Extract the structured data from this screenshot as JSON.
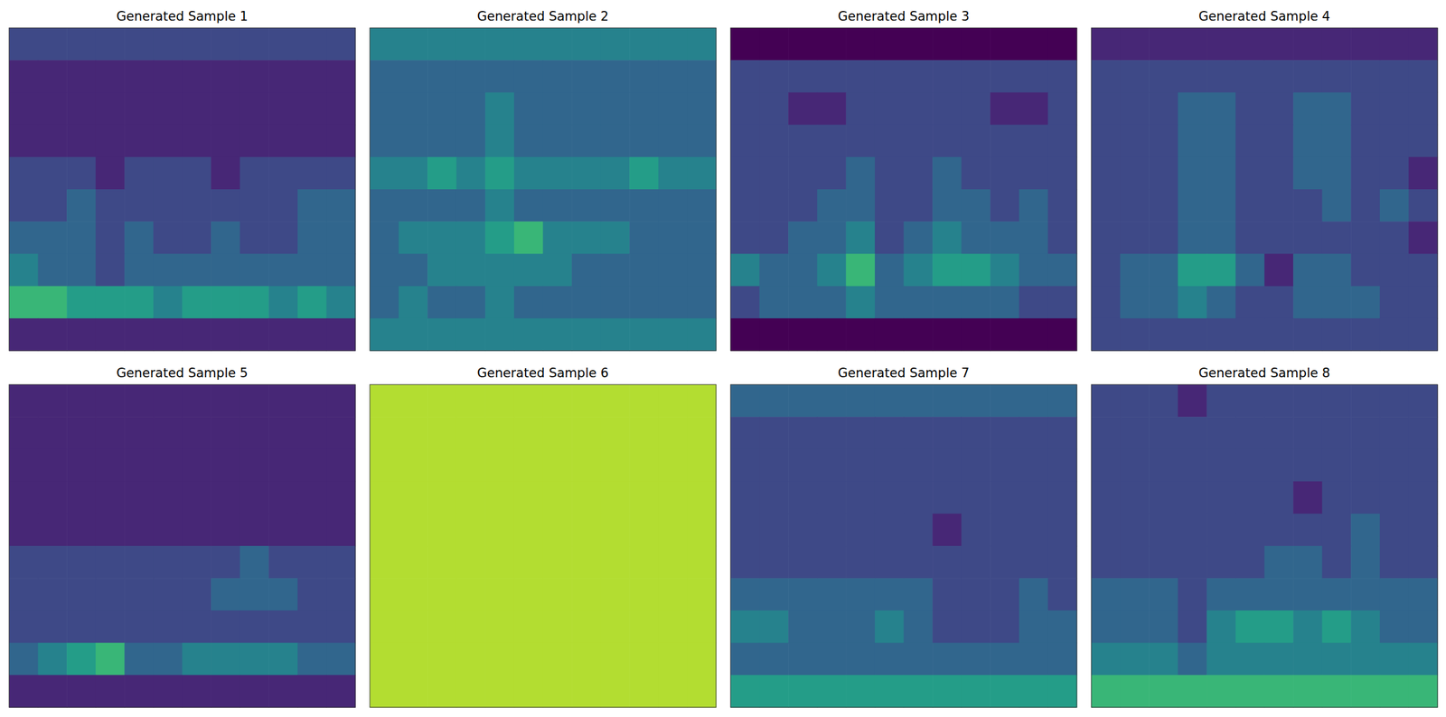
{
  "chart_data": [
    {
      "type": "heatmap",
      "title": "Generated Sample 1",
      "tick_labels": false,
      "zlim": [
        0,
        9
      ],
      "cells": [
        [
          2,
          2,
          2,
          2,
          2,
          2,
          2,
          2,
          2,
          2,
          2,
          2
        ],
        [
          1,
          1,
          1,
          1,
          1,
          1,
          1,
          1,
          1,
          1,
          1,
          1
        ],
        [
          1,
          1,
          1,
          1,
          1,
          1,
          1,
          1,
          1,
          1,
          1,
          1
        ],
        [
          1,
          1,
          1,
          1,
          1,
          1,
          1,
          1,
          1,
          1,
          1,
          1
        ],
        [
          2,
          2,
          2,
          1,
          2,
          2,
          2,
          1,
          2,
          2,
          2,
          2
        ],
        [
          2,
          2,
          3,
          2,
          2,
          2,
          2,
          2,
          2,
          2,
          3,
          3
        ],
        [
          3,
          3,
          3,
          2,
          3,
          2,
          2,
          3,
          2,
          2,
          3,
          3
        ],
        [
          4,
          3,
          3,
          2,
          3,
          3,
          3,
          3,
          3,
          3,
          3,
          3
        ],
        [
          6,
          6,
          5,
          5,
          5,
          4,
          5,
          5,
          5,
          4,
          5,
          4
        ],
        [
          1,
          1,
          1,
          1,
          1,
          1,
          1,
          1,
          1,
          1,
          1,
          1
        ]
      ]
    },
    {
      "type": "heatmap",
      "title": "Generated Sample 2",
      "tick_labels": false,
      "zlim": [
        0,
        9
      ],
      "cells": [
        [
          4,
          4,
          4,
          4,
          4,
          4,
          4,
          4,
          4,
          4,
          4,
          4
        ],
        [
          3,
          3,
          3,
          3,
          3,
          3,
          3,
          3,
          3,
          3,
          3,
          3
        ],
        [
          3,
          3,
          3,
          3,
          4,
          3,
          3,
          3,
          3,
          3,
          3,
          3
        ],
        [
          3,
          3,
          3,
          3,
          4,
          3,
          3,
          3,
          3,
          3,
          3,
          3
        ],
        [
          4,
          4,
          5,
          4,
          5,
          4,
          4,
          4,
          4,
          5,
          4,
          4
        ],
        [
          3,
          3,
          3,
          3,
          4,
          3,
          3,
          3,
          3,
          3,
          3,
          3
        ],
        [
          3,
          4,
          4,
          4,
          5,
          6,
          4,
          4,
          4,
          3,
          3,
          3
        ],
        [
          3,
          3,
          4,
          4,
          4,
          4,
          4,
          3,
          3,
          3,
          3,
          3
        ],
        [
          3,
          4,
          3,
          3,
          4,
          3,
          3,
          3,
          3,
          3,
          3,
          3
        ],
        [
          4,
          4,
          4,
          4,
          4,
          4,
          4,
          4,
          4,
          4,
          4,
          4
        ]
      ]
    },
    {
      "type": "heatmap",
      "title": "Generated Sample 3",
      "tick_labels": false,
      "zlim": [
        0,
        9
      ],
      "cells": [
        [
          0,
          0,
          0,
          0,
          0,
          0,
          0,
          0,
          0,
          0,
          0,
          0
        ],
        [
          2,
          2,
          2,
          2,
          2,
          2,
          2,
          2,
          2,
          2,
          2,
          2
        ],
        [
          2,
          2,
          1,
          1,
          2,
          2,
          2,
          2,
          2,
          1,
          1,
          2
        ],
        [
          2,
          2,
          2,
          2,
          2,
          2,
          2,
          2,
          2,
          2,
          2,
          2
        ],
        [
          2,
          2,
          2,
          2,
          3,
          2,
          2,
          3,
          2,
          2,
          2,
          2
        ],
        [
          2,
          2,
          2,
          3,
          3,
          2,
          2,
          3,
          3,
          2,
          3,
          2
        ],
        [
          2,
          2,
          3,
          3,
          4,
          2,
          3,
          4,
          3,
          3,
          3,
          2
        ],
        [
          4,
          3,
          3,
          4,
          6,
          3,
          4,
          5,
          5,
          4,
          3,
          3
        ],
        [
          2,
          3,
          3,
          3,
          4,
          3,
          3,
          3,
          3,
          3,
          2,
          2
        ],
        [
          0,
          0,
          0,
          0,
          0,
          0,
          0,
          0,
          0,
          0,
          0,
          0
        ]
      ]
    },
    {
      "type": "heatmap",
      "title": "Generated Sample 4",
      "tick_labels": false,
      "zlim": [
        0,
        9
      ],
      "cells": [
        [
          1,
          1,
          1,
          1,
          1,
          1,
          1,
          1,
          1,
          1,
          1,
          1
        ],
        [
          2,
          2,
          2,
          2,
          2,
          2,
          2,
          2,
          2,
          2,
          2,
          2
        ],
        [
          2,
          2,
          2,
          3,
          3,
          2,
          2,
          3,
          3,
          2,
          2,
          2
        ],
        [
          2,
          2,
          2,
          3,
          3,
          2,
          2,
          3,
          3,
          2,
          2,
          2
        ],
        [
          2,
          2,
          2,
          3,
          3,
          2,
          2,
          3,
          3,
          2,
          2,
          1
        ],
        [
          2,
          2,
          2,
          3,
          3,
          2,
          2,
          2,
          3,
          2,
          3,
          2
        ],
        [
          2,
          2,
          2,
          3,
          3,
          2,
          2,
          2,
          2,
          2,
          2,
          1
        ],
        [
          2,
          3,
          3,
          5,
          5,
          3,
          1,
          3,
          3,
          2,
          2,
          2
        ],
        [
          2,
          3,
          3,
          4,
          3,
          2,
          2,
          3,
          3,
          3,
          2,
          2
        ],
        [
          2,
          2,
          2,
          2,
          2,
          2,
          2,
          2,
          2,
          2,
          2,
          2
        ]
      ]
    },
    {
      "type": "heatmap",
      "title": "Generated Sample 5",
      "tick_labels": false,
      "zlim": [
        0,
        9
      ],
      "cells": [
        [
          1,
          1,
          1,
          1,
          1,
          1,
          1,
          1,
          1,
          1,
          1,
          1
        ],
        [
          1,
          1,
          1,
          1,
          1,
          1,
          1,
          1,
          1,
          1,
          1,
          1
        ],
        [
          1,
          1,
          1,
          1,
          1,
          1,
          1,
          1,
          1,
          1,
          1,
          1
        ],
        [
          1,
          1,
          1,
          1,
          1,
          1,
          1,
          1,
          1,
          1,
          1,
          1
        ],
        [
          1,
          1,
          1,
          1,
          1,
          1,
          1,
          1,
          1,
          1,
          1,
          1
        ],
        [
          2,
          2,
          2,
          2,
          2,
          2,
          2,
          2,
          3,
          2,
          2,
          2
        ],
        [
          2,
          2,
          2,
          2,
          2,
          2,
          2,
          3,
          3,
          3,
          2,
          2
        ],
        [
          2,
          2,
          2,
          2,
          2,
          2,
          2,
          2,
          2,
          2,
          2,
          2
        ],
        [
          3,
          4,
          5,
          6,
          3,
          3,
          4,
          4,
          4,
          4,
          3,
          3
        ],
        [
          1,
          1,
          1,
          1,
          1,
          1,
          1,
          1,
          1,
          1,
          1,
          1
        ]
      ]
    },
    {
      "type": "heatmap",
      "title": "Generated Sample 6",
      "tick_labels": false,
      "zlim": [
        0,
        9
      ],
      "cells": [
        [
          8,
          8,
          8,
          8,
          8,
          8,
          8,
          8,
          8,
          8,
          8,
          8
        ],
        [
          8,
          8,
          8,
          8,
          8,
          8,
          8,
          8,
          8,
          8,
          8,
          8
        ],
        [
          8,
          8,
          8,
          8,
          8,
          8,
          8,
          8,
          8,
          8,
          8,
          8
        ],
        [
          8,
          8,
          8,
          8,
          8,
          8,
          8,
          8,
          8,
          8,
          8,
          8
        ],
        [
          8,
          8,
          8,
          8,
          8,
          8,
          8,
          8,
          8,
          8,
          8,
          8
        ],
        [
          8,
          8,
          8,
          8,
          8,
          8,
          8,
          8,
          8,
          8,
          8,
          8
        ],
        [
          8,
          8,
          8,
          8,
          8,
          8,
          8,
          8,
          8,
          8,
          8,
          8
        ],
        [
          8,
          8,
          8,
          8,
          8,
          8,
          8,
          8,
          8,
          8,
          8,
          8
        ],
        [
          8,
          8,
          8,
          8,
          8,
          8,
          8,
          8,
          8,
          8,
          8,
          8
        ],
        [
          8,
          8,
          8,
          8,
          8,
          8,
          8,
          8,
          8,
          8,
          8,
          8
        ]
      ]
    },
    {
      "type": "heatmap",
      "title": "Generated Sample 7",
      "tick_labels": false,
      "zlim": [
        0,
        9
      ],
      "cells": [
        [
          3,
          3,
          3,
          3,
          3,
          3,
          3,
          3,
          3,
          3,
          3,
          3
        ],
        [
          2,
          2,
          2,
          2,
          2,
          2,
          2,
          2,
          2,
          2,
          2,
          2
        ],
        [
          2,
          2,
          2,
          2,
          2,
          2,
          2,
          2,
          2,
          2,
          2,
          2
        ],
        [
          2,
          2,
          2,
          2,
          2,
          2,
          2,
          2,
          2,
          2,
          2,
          2
        ],
        [
          2,
          2,
          2,
          2,
          2,
          2,
          2,
          1,
          2,
          2,
          2,
          2
        ],
        [
          2,
          2,
          2,
          2,
          2,
          2,
          2,
          2,
          2,
          2,
          2,
          2
        ],
        [
          3,
          3,
          3,
          3,
          3,
          3,
          3,
          2,
          2,
          2,
          3,
          2
        ],
        [
          4,
          4,
          3,
          3,
          3,
          4,
          3,
          2,
          2,
          2,
          3,
          3
        ],
        [
          3,
          3,
          3,
          3,
          3,
          3,
          3,
          3,
          3,
          3,
          3,
          3
        ],
        [
          5,
          5,
          5,
          5,
          5,
          5,
          5,
          5,
          5,
          5,
          5,
          5
        ]
      ]
    },
    {
      "type": "heatmap",
      "title": "Generated Sample 8",
      "tick_labels": false,
      "zlim": [
        0,
        9
      ],
      "cells": [
        [
          2,
          2,
          2,
          1,
          2,
          2,
          2,
          2,
          2,
          2,
          2,
          2
        ],
        [
          2,
          2,
          2,
          2,
          2,
          2,
          2,
          2,
          2,
          2,
          2,
          2
        ],
        [
          2,
          2,
          2,
          2,
          2,
          2,
          2,
          2,
          2,
          2,
          2,
          2
        ],
        [
          2,
          2,
          2,
          2,
          2,
          2,
          2,
          1,
          2,
          2,
          2,
          2
        ],
        [
          2,
          2,
          2,
          2,
          2,
          2,
          2,
          2,
          2,
          3,
          2,
          2
        ],
        [
          2,
          2,
          2,
          2,
          2,
          2,
          3,
          3,
          2,
          3,
          2,
          2
        ],
        [
          3,
          3,
          3,
          2,
          3,
          3,
          3,
          3,
          3,
          3,
          3,
          3
        ],
        [
          3,
          3,
          3,
          2,
          4,
          5,
          5,
          4,
          5,
          4,
          3,
          3
        ],
        [
          4,
          4,
          4,
          3,
          4,
          4,
          4,
          4,
          4,
          4,
          4,
          4
        ],
        [
          6,
          6,
          6,
          6,
          6,
          6,
          6,
          6,
          6,
          6,
          6,
          6
        ]
      ]
    }
  ]
}
